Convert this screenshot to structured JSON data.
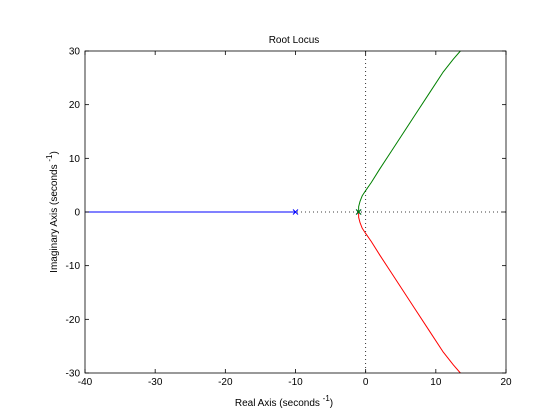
{
  "chart_data": {
    "type": "line",
    "title": "Root Locus",
    "xlabel": "Real Axis (seconds ",
    "xlabel_superscript": "-1",
    "xlabel_suffix": ")",
    "ylabel": "Imaginary Axis (seconds ",
    "ylabel_superscript": "-1",
    "ylabel_suffix": ")",
    "xlim": [
      -40,
      20
    ],
    "ylim": [
      -30,
      30
    ],
    "xticks": [
      -40,
      -30,
      -20,
      -10,
      0,
      10,
      20
    ],
    "yticks": [
      -30,
      -20,
      -10,
      0,
      10,
      20,
      30
    ],
    "grid": false,
    "reference_lines": {
      "x": 0,
      "y": 0,
      "style": "dotted"
    },
    "series": [
      {
        "color": "#0000ff",
        "x": [
          -10,
          -12,
          -15,
          -20,
          -25,
          -30,
          -35,
          -40
        ],
        "y": [
          0,
          0,
          0,
          0,
          0,
          0,
          0,
          0
        ]
      },
      {
        "color": "#008000",
        "x": [
          -1,
          -1.0,
          -0.8,
          -0.5,
          0,
          0.8,
          2,
          3.5,
          5,
          7,
          9,
          11,
          12.5,
          13.5
        ],
        "y": [
          0,
          1,
          2,
          3,
          4,
          5.5,
          8,
          11,
          14,
          18,
          22,
          26,
          28.5,
          30
        ]
      },
      {
        "color": "#ff0000",
        "x": [
          -1,
          -1.0,
          -0.8,
          -0.5,
          0,
          0.8,
          2,
          3.5,
          5,
          7,
          9,
          11,
          12.5,
          13.5
        ],
        "y": [
          0,
          -1,
          -2,
          -3,
          -4,
          -5.5,
          -8,
          -11,
          -14,
          -18,
          -22,
          -26,
          -28.5,
          -30
        ]
      }
    ],
    "poles": [
      {
        "x": -10,
        "y": 0,
        "color": "#0000ff"
      },
      {
        "x": -1,
        "y": 0,
        "color": "#0000ff"
      },
      {
        "x": -1,
        "y": 0,
        "color": "#008000"
      }
    ],
    "colors": {
      "axes_box": "#000000",
      "reference": "#000000",
      "background": "#ffffff"
    }
  }
}
